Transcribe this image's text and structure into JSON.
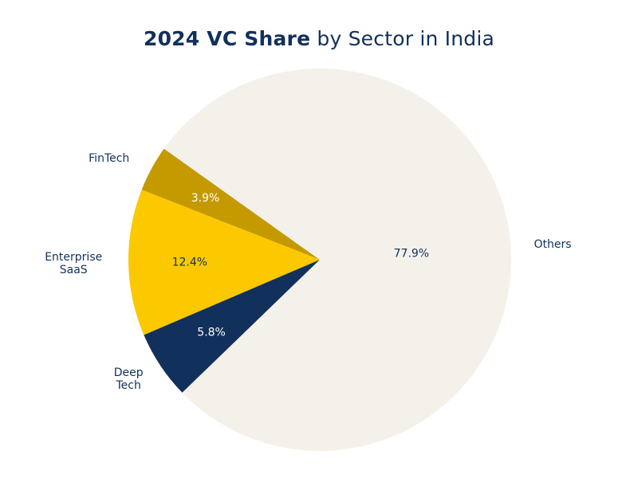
{
  "title_bold": "2024 VC Share",
  "title_rest": "by Sector in India",
  "chart_data": {
    "type": "pie",
    "title": "2024 VC Share by Sector in India",
    "slices": [
      {
        "label": "FinTech",
        "value": 3.9,
        "display": "3.9%",
        "color": "#c49a00",
        "text_color": "#ffffff"
      },
      {
        "label": "Enterprise SaaS",
        "value": 12.4,
        "display": "12.4%",
        "color": "#fcc800",
        "text_color": "#12305c"
      },
      {
        "label": "Deep Tech",
        "value": 5.8,
        "display": "5.8%",
        "color": "#12305c",
        "text_color": "#ffffff"
      },
      {
        "label": "Others",
        "value": 77.9,
        "display": "77.9%",
        "color": "#f3f1ea",
        "text_color": "#12305c"
      }
    ],
    "legend": "none"
  }
}
